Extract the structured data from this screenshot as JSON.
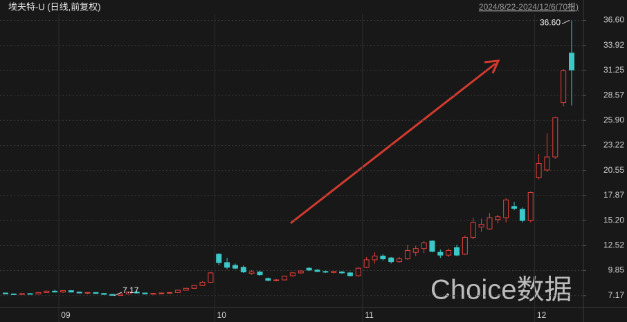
{
  "chart_data": {
    "type": "candlestick",
    "title": "埃夫特-U (日线,前复权)",
    "date_range": "2024/8/22-2024/12/6(70根)",
    "watermark": "Choice数据",
    "max_label": "36.60",
    "min_label": "7.17",
    "up_color": "#e8413c",
    "down_color": "#3cc8c8",
    "grid": true,
    "categories": [
      null,
      null,
      null,
      null,
      null,
      null,
      null,
      "09",
      null,
      null,
      null,
      null,
      null,
      null,
      null,
      null,
      null,
      null,
      null,
      null,
      null,
      null,
      null,
      null,
      null,
      null,
      "10",
      null,
      null,
      null,
      null,
      null,
      null,
      null,
      null,
      null,
      null,
      null,
      null,
      null,
      null,
      null,
      null,
      null,
      "11",
      null,
      null,
      null,
      null,
      null,
      null,
      null,
      null,
      null,
      null,
      null,
      null,
      null,
      null,
      null,
      null,
      null,
      null,
      null,
      null,
      "12",
      null,
      null,
      null,
      null
    ],
    "open": [
      7.45,
      7.35,
      7.3,
      7.38,
      7.35,
      7.5,
      7.65,
      7.55,
      7.7,
      7.55,
      7.45,
      7.5,
      7.4,
      7.3,
      7.2,
      7.35,
      7.55,
      7.45,
      7.35,
      7.4,
      7.45,
      7.5,
      7.75,
      7.95,
      8.25,
      8.6,
      11.6,
      10.7,
      10.4,
      10.2,
      9.55,
      9.7,
      9.0,
      8.8,
      8.85,
      9.3,
      9.6,
      10.1,
      9.9,
      9.75,
      9.65,
      9.7,
      9.6,
      9.3,
      10.2,
      11.0,
      11.4,
      11.2,
      10.8,
      11.1,
      11.8,
      12.2,
      13.0,
      11.8,
      11.5,
      12.3,
      11.6,
      13.4,
      14.5,
      14.3,
      15.3,
      15.5,
      16.7,
      16.4,
      15.2,
      19.8,
      20.6,
      22.0,
      27.8,
      33.1
    ],
    "high": [
      7.5,
      7.4,
      7.4,
      7.45,
      7.55,
      7.7,
      7.8,
      7.75,
      7.75,
      7.6,
      7.55,
      7.55,
      7.45,
      7.35,
      7.4,
      7.6,
      7.7,
      7.5,
      7.45,
      7.5,
      7.55,
      7.8,
      8.0,
      8.3,
      8.7,
      9.7,
      11.7,
      11.2,
      10.6,
      10.4,
      9.9,
      9.8,
      9.1,
      8.95,
      9.3,
      9.7,
      9.9,
      10.2,
      10.0,
      9.85,
      9.8,
      9.8,
      9.7,
      10.2,
      11.3,
      11.8,
      11.6,
      11.3,
      11.3,
      12.6,
      12.5,
      13.0,
      13.1,
      12.1,
      12.2,
      12.6,
      13.6,
      15.5,
      15.4,
      16.0,
      15.8,
      17.6,
      17.2,
      16.6,
      18.3,
      22.3,
      24.5,
      26.3,
      31.4,
      36.6
    ],
    "low": [
      7.3,
      7.28,
      7.25,
      7.3,
      7.3,
      7.45,
      7.5,
      7.45,
      7.5,
      7.4,
      7.35,
      7.35,
      7.25,
      7.17,
      7.18,
      7.3,
      7.4,
      7.3,
      7.28,
      7.3,
      7.35,
      7.45,
      7.7,
      7.9,
      8.2,
      8.55,
      10.4,
      10.0,
      10.0,
      9.6,
      9.4,
      9.3,
      8.7,
      8.7,
      8.8,
      9.2,
      9.5,
      9.8,
      9.7,
      9.6,
      9.55,
      9.5,
      9.2,
      9.2,
      10.1,
      10.6,
      10.9,
      10.6,
      10.7,
      11.0,
      11.4,
      11.7,
      11.8,
      11.2,
      11.3,
      11.4,
      11.5,
      13.2,
      14.0,
      14.2,
      14.9,
      15.0,
      16.3,
      15.0,
      15.0,
      19.6,
      20.4,
      21.8,
      27.4,
      27.5
    ],
    "close": [
      7.35,
      7.3,
      7.38,
      7.35,
      7.5,
      7.65,
      7.55,
      7.7,
      7.55,
      7.45,
      7.5,
      7.4,
      7.3,
      7.2,
      7.35,
      7.55,
      7.45,
      7.35,
      7.4,
      7.45,
      7.5,
      7.75,
      7.95,
      8.25,
      8.6,
      9.6,
      10.7,
      10.2,
      10.1,
      9.7,
      9.7,
      9.4,
      8.8,
      8.85,
      9.25,
      9.6,
      9.8,
      9.9,
      9.75,
      9.7,
      9.75,
      9.6,
      9.3,
      10.1,
      11.0,
      11.4,
      11.1,
      10.8,
      11.1,
      12.0,
      12.2,
      12.8,
      11.9,
      11.5,
      12.0,
      11.5,
      13.4,
      15.0,
      14.8,
      15.5,
      15.6,
      17.4,
      16.5,
      15.2,
      18.2,
      21.3,
      22.0,
      26.2,
      31.2,
      31.3
    ],
    "ylim": [
      5.9,
      37.3
    ],
    "yticks": [
      7.17,
      9.85,
      12.52,
      {
        "value": 15.2,
        "label": "15.20"
      },
      17.87,
      20.55,
      23.22,
      {
        "value": 25.9,
        "label": "25.90"
      },
      28.57,
      31.25,
      33.92,
      {
        "value": 36.6,
        "label": "36.60"
      }
    ]
  }
}
